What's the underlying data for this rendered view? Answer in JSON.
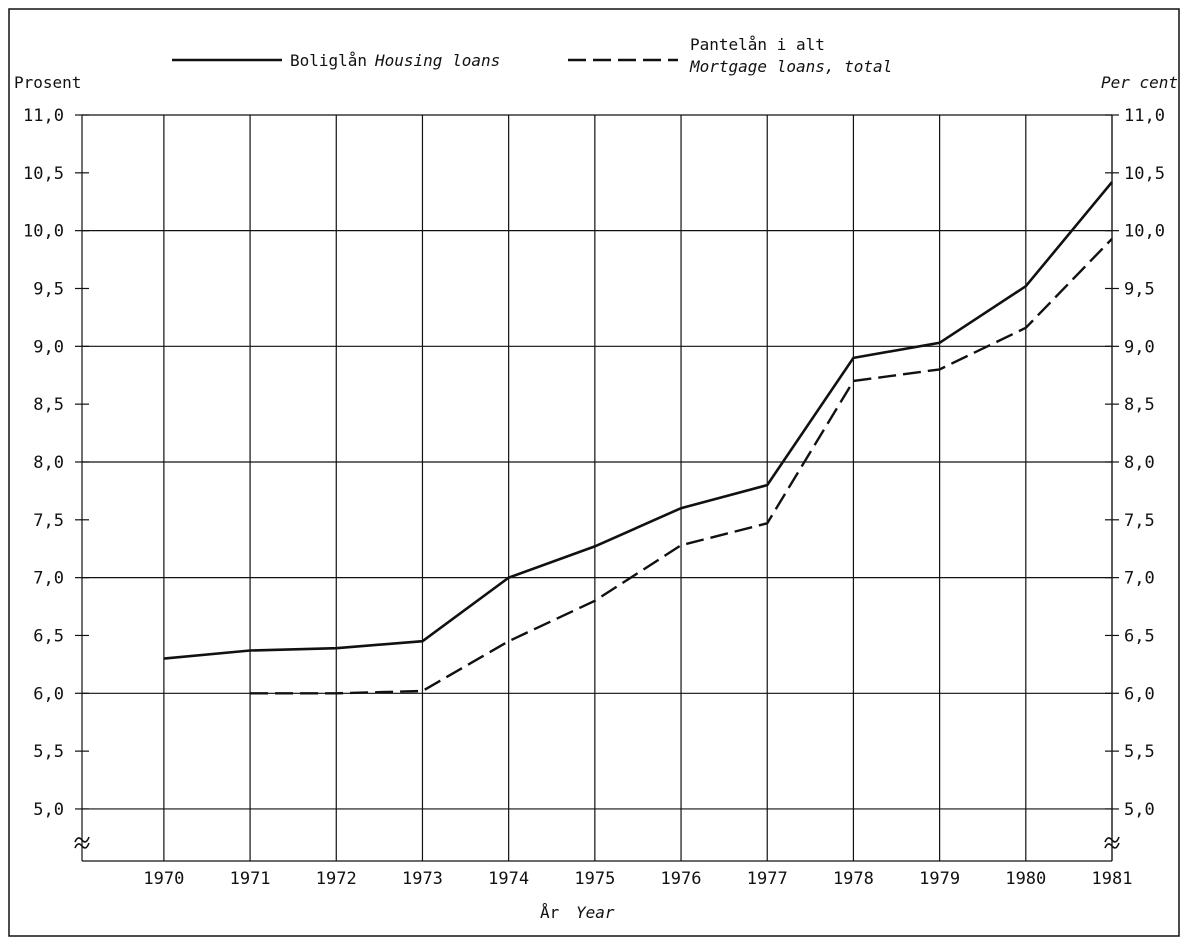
{
  "chart_data": {
    "type": "line",
    "x": [
      1970,
      1971,
      1972,
      1973,
      1974,
      1975,
      1976,
      1977,
      1978,
      1979,
      1980,
      1981
    ],
    "x_tick_labels": [
      "1970",
      "1971",
      "1972",
      "1973",
      "1974",
      "1975",
      "1976",
      "1977",
      "1978",
      "1979",
      "1980",
      "1981"
    ],
    "xlabel": "År",
    "xlabel_en": "Year",
    "ylabel_left": "Prosent",
    "ylabel_right": "Per cent",
    "y_ticks": [
      5.0,
      5.5,
      6.0,
      6.5,
      7.0,
      7.5,
      8.0,
      8.5,
      9.0,
      9.5,
      10.0,
      10.5,
      11.0
    ],
    "y_tick_labels": [
      "5,0",
      "5,5",
      "6,0",
      "6,5",
      "7,0",
      "7,5",
      "8,0",
      "8,5",
      "9,0",
      "9,5",
      "10,0",
      "10,5",
      "11,0"
    ],
    "ylim": [
      4.55,
      11.0
    ],
    "xlim": [
      1969.05,
      1981
    ],
    "grid": true,
    "axis_break": true,
    "legend_position": "top",
    "series": [
      {
        "name": "Boliglån",
        "name_en": "Housing loans",
        "line_style": "solid",
        "x": [
          1970,
          1971,
          1972,
          1973,
          1974,
          1975,
          1976,
          1977,
          1978,
          1979,
          1980,
          1981
        ],
        "values": [
          6.3,
          6.37,
          6.39,
          6.45,
          7.0,
          7.27,
          7.6,
          7.8,
          8.9,
          9.03,
          9.52,
          10.42
        ]
      },
      {
        "name": "Pantelån i alt",
        "name_en": "Mortgage loans, total",
        "line_style": "dashed",
        "x": [
          1971,
          1972,
          1973,
          1974,
          1975,
          1976,
          1977,
          1978,
          1979,
          1980,
          1981
        ],
        "values": [
          6.0,
          6.0,
          6.02,
          6.45,
          6.8,
          7.28,
          7.47,
          8.7,
          8.8,
          9.16,
          9.93
        ]
      }
    ]
  }
}
